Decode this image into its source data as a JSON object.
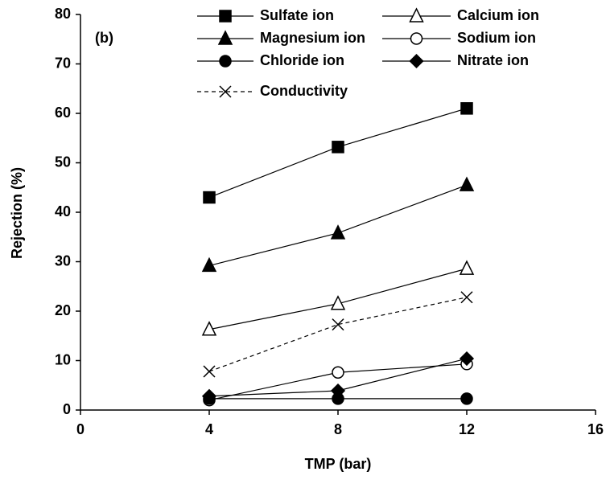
{
  "chart_data": {
    "type": "line",
    "annotation": "(b)",
    "x_label": "TMP (bar)",
    "y_label": "Rejection (%)",
    "x": [
      4,
      8,
      12
    ],
    "xlim": [
      0,
      16
    ],
    "xticks": [
      0,
      4,
      8,
      12,
      16
    ],
    "ylim": [
      0,
      80
    ],
    "yticks": [
      0,
      10,
      20,
      30,
      40,
      50,
      60,
      70,
      80
    ],
    "grid": false,
    "series": [
      {
        "name": "Sulfate ion",
        "color": "#000000",
        "marker": "square",
        "filled": true,
        "dashed": false,
        "values": [
          43,
          53.2,
          61
        ]
      },
      {
        "name": "Calcium ion",
        "color": "#000000",
        "marker": "triangle",
        "filled": false,
        "dashed": false,
        "values": [
          16.3,
          21.5,
          28.6
        ]
      },
      {
        "name": "Magnesium ion",
        "color": "#000000",
        "marker": "triangle",
        "filled": true,
        "dashed": false,
        "values": [
          29.2,
          35.8,
          45.5
        ]
      },
      {
        "name": "Sodium ion",
        "color": "#000000",
        "marker": "circle",
        "filled": false,
        "dashed": false,
        "values": [
          2,
          7.6,
          9.3
        ]
      },
      {
        "name": "Chloride ion",
        "color": "#000000",
        "marker": "circle",
        "filled": true,
        "dashed": false,
        "values": [
          2.3,
          2.3,
          2.3
        ]
      },
      {
        "name": "Nitrate ion",
        "color": "#000000",
        "marker": "diamond",
        "filled": true,
        "dashed": false,
        "values": [
          2.8,
          3.9,
          10.4
        ]
      },
      {
        "name": "Conductivity",
        "color": "#000000",
        "marker": "x",
        "filled": false,
        "dashed": true,
        "values": [
          7.8,
          17.3,
          22.8
        ]
      }
    ]
  }
}
